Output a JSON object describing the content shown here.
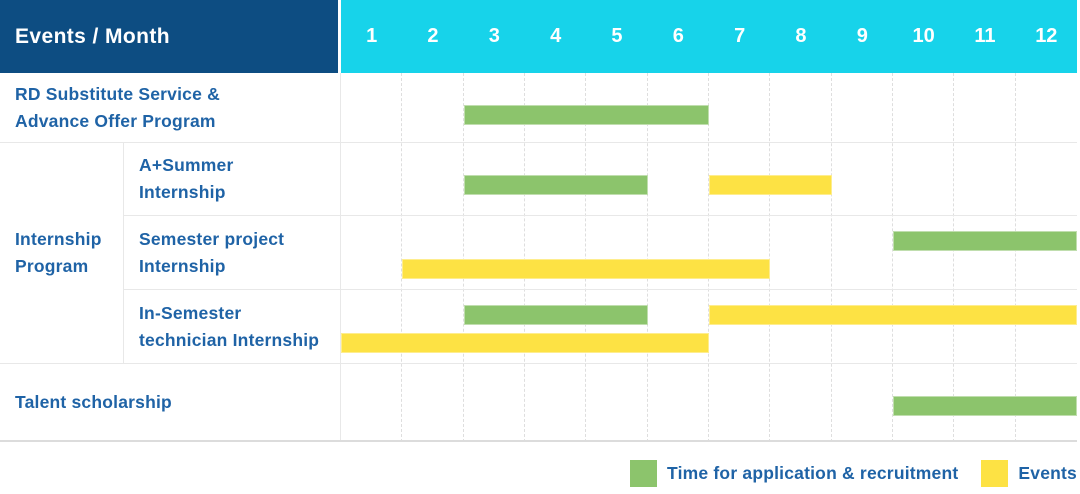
{
  "header": {
    "label": "Events / Month"
  },
  "colors": {
    "header_bg": "#0d4d82",
    "months_bg": "#17d3ea",
    "label_text": "#1f63a6",
    "green": "#8cc46c",
    "yellow": "#fde244"
  },
  "chart_data": {
    "type": "bar",
    "subtype": "gantt",
    "title": "Events / Month",
    "x_axis": {
      "label": "Month",
      "range": [
        1,
        12
      ],
      "ticks": [
        "1",
        "2",
        "3",
        "4",
        "5",
        "6",
        "7",
        "8",
        "9",
        "10",
        "11",
        "12"
      ]
    },
    "grid": "vertical-dashed",
    "group_label_lines": [
      "Internship",
      "Program"
    ],
    "rows": [
      {
        "label_lines": [
          "RD Substitute Service &",
          "Advance Offer Program"
        ],
        "bars": [
          {
            "series": "Time for application & recruitment",
            "type": "green",
            "start_month": 3,
            "end_month": 6,
            "lane": "center"
          }
        ]
      },
      {
        "label_lines": [
          "A+Summer",
          "Internship"
        ],
        "bars": [
          {
            "series": "Time for application & recruitment",
            "type": "green",
            "start_month": 3,
            "end_month": 5,
            "lane": "center"
          },
          {
            "series": "Events",
            "type": "yellow",
            "start_month": 7,
            "end_month": 8,
            "lane": "center"
          }
        ]
      },
      {
        "label_lines": [
          "Semester project",
          "Internship"
        ],
        "bars": [
          {
            "series": "Time for application & recruitment",
            "type": "green",
            "start_month": 10,
            "end_month": 12,
            "lane": "top"
          },
          {
            "series": "Events",
            "type": "yellow",
            "start_month": 2,
            "end_month": 7,
            "lane": "bottom"
          }
        ]
      },
      {
        "label_lines": [
          "In-Semester",
          "technician Internship"
        ],
        "bars": [
          {
            "series": "Time for application & recruitment",
            "type": "green",
            "start_month": 3,
            "end_month": 5,
            "lane": "top"
          },
          {
            "series": "Events",
            "type": "yellow",
            "start_month": 7,
            "end_month": 12,
            "lane": "top"
          },
          {
            "series": "Events",
            "type": "yellow",
            "start_month": 1,
            "end_month": 6,
            "lane": "bottom"
          }
        ]
      },
      {
        "label_lines": [
          "Talent scholarship"
        ],
        "bars": [
          {
            "series": "Time for application & recruitment",
            "type": "green",
            "start_month": 10,
            "end_month": 12,
            "lane": "center"
          }
        ]
      }
    ],
    "legend": [
      {
        "swatch": "green",
        "label": "Time for application & recruitment"
      },
      {
        "swatch": "yellow",
        "label": "Events"
      }
    ],
    "legend_position": "bottom-right"
  }
}
